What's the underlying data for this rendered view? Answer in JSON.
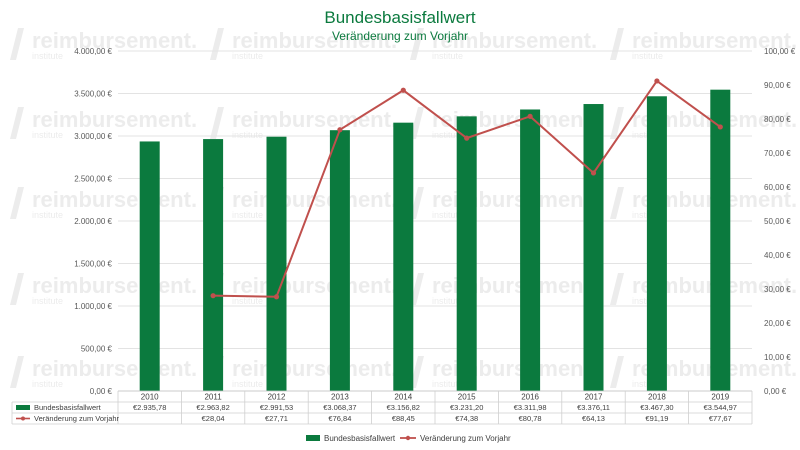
{
  "watermark": {
    "text": "reimbursement.",
    "subtext": "institute"
  },
  "chart_data": {
    "type": "bar",
    "title": "Bundesbasisfallwert",
    "subtitle": "Veränderung zum Vorjahr",
    "categories": [
      "2010",
      "2011",
      "2012",
      "2013",
      "2014",
      "2015",
      "2016",
      "2017",
      "2018",
      "2019"
    ],
    "series": [
      {
        "name": "Bundesbasisfallwert",
        "kind": "bar",
        "axis": "left",
        "color": "#0b7a3e",
        "values": [
          2935.78,
          2963.82,
          2991.53,
          3068.37,
          3156.82,
          3231.2,
          3311.98,
          3376.11,
          3467.3,
          3544.97
        ],
        "labels": [
          "€2.935,78",
          "€2.963,82",
          "€2.991,53",
          "€3.068,37",
          "€3.156,82",
          "€3.231,20",
          "€3.311,98",
          "€3.376,11",
          "€3.467,30",
          "€3.544,97"
        ]
      },
      {
        "name": "Veränderung zum Vorjahr",
        "kind": "line",
        "axis": "right",
        "color": "#c0504d",
        "values": [
          null,
          28.04,
          27.71,
          76.84,
          88.45,
          74.38,
          80.78,
          64.13,
          91.19,
          77.67
        ],
        "labels": [
          "",
          "€28,04",
          "€27,71",
          "€76,84",
          "€88,45",
          "€74,38",
          "€80,78",
          "€64,13",
          "€91,19",
          "€77,67"
        ]
      }
    ],
    "y_left": {
      "min": 0,
      "max": 4000,
      "ticks": [
        "0,00 €",
        "500,00 €",
        "1.000,00 €",
        "1.500,00 €",
        "2.000,00 €",
        "2.500,00 €",
        "3.000,00 €",
        "3.500,00 €",
        "4.000,00 €"
      ]
    },
    "y_right": {
      "min": 0,
      "max": 100,
      "ticks": [
        "0,00 €",
        "10,00 €",
        "20,00 €",
        "30,00 €",
        "40,00 €",
        "50,00 €",
        "60,00 €",
        "70,00 €",
        "80,00 €",
        "90,00 €",
        "100,00 €"
      ]
    },
    "data_table": true,
    "legend_position": "bottom",
    "grid": true
  }
}
